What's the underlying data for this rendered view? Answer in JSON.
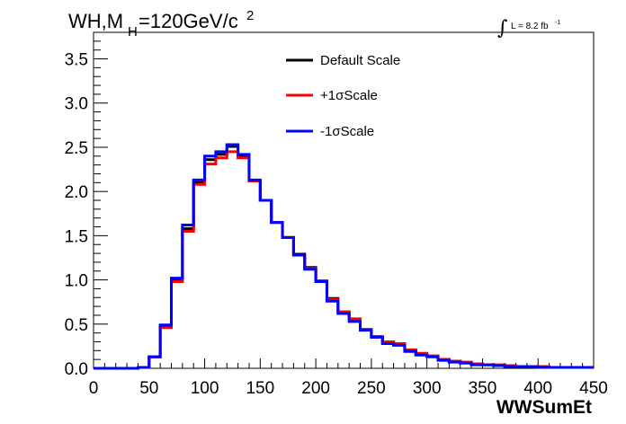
{
  "header": {
    "title_prefix": "WH,M",
    "title_sub": "H",
    "title_rest": "=120GeV/c",
    "title_sup": "2",
    "lumi_symbol": "∫",
    "lumi_text": "L = 8.2 fb",
    "lumi_sup": "-1"
  },
  "colors": {
    "default": "#000000",
    "plus": "#ff0000",
    "minus": "#0000ff",
    "axis": "#000000"
  },
  "chart_data": {
    "type": "line",
    "step": true,
    "title": "WH,M_H=120GeV/c^2",
    "xlabel": "WWSumEt",
    "ylabel": "",
    "xlim": [
      0,
      450
    ],
    "ylim": [
      0,
      3.8
    ],
    "bin_width": 10,
    "x_bin_low_edges": [
      0,
      10,
      20,
      30,
      40,
      50,
      60,
      70,
      80,
      90,
      100,
      110,
      120,
      130,
      140,
      150,
      160,
      170,
      180,
      190,
      200,
      210,
      220,
      230,
      240,
      250,
      260,
      270,
      280,
      290,
      300,
      310,
      320,
      330,
      340,
      350,
      360,
      370,
      380,
      390,
      400,
      410,
      420,
      430,
      440
    ],
    "x_ticks": [
      "0",
      "50",
      "100",
      "150",
      "200",
      "250",
      "300",
      "350",
      "400",
      "450"
    ],
    "y_ticks": [
      "0.0",
      "0.5",
      "1.0",
      "1.5",
      "2.0",
      "2.5",
      "3.0",
      "3.5"
    ],
    "legend_position": "top-center",
    "grid": false,
    "series": [
      {
        "name": "Default Scale",
        "values": [
          0,
          0,
          0,
          0,
          0.01,
          0.13,
          0.48,
          1.0,
          1.58,
          2.1,
          2.36,
          2.42,
          2.51,
          2.4,
          2.12,
          1.9,
          1.65,
          1.48,
          1.29,
          1.14,
          0.99,
          0.79,
          0.64,
          0.55,
          0.44,
          0.36,
          0.29,
          0.27,
          0.2,
          0.16,
          0.14,
          0.1,
          0.08,
          0.06,
          0.05,
          0.04,
          0.03,
          0.03,
          0.02,
          0.02,
          0.02,
          0.01,
          0.01,
          0.01,
          0.01
        ]
      },
      {
        "name": "+1σScale",
        "values": [
          0,
          0,
          0,
          0,
          0.01,
          0.13,
          0.46,
          0.98,
          1.55,
          2.08,
          2.31,
          2.38,
          2.45,
          2.38,
          2.12,
          1.9,
          1.65,
          1.48,
          1.28,
          1.13,
          0.99,
          0.78,
          0.64,
          0.56,
          0.44,
          0.36,
          0.3,
          0.28,
          0.21,
          0.17,
          0.14,
          0.1,
          0.08,
          0.07,
          0.05,
          0.04,
          0.04,
          0.03,
          0.02,
          0.02,
          0.02,
          0.01,
          0.01,
          0.01,
          0.01
        ]
      },
      {
        "name": "-1σScale",
        "values": [
          0,
          0,
          0,
          0,
          0.01,
          0.13,
          0.49,
          1.02,
          1.62,
          2.13,
          2.4,
          2.45,
          2.53,
          2.42,
          2.13,
          1.9,
          1.65,
          1.48,
          1.28,
          1.12,
          0.98,
          0.76,
          0.62,
          0.53,
          0.43,
          0.35,
          0.28,
          0.26,
          0.19,
          0.15,
          0.13,
          0.09,
          0.07,
          0.06,
          0.04,
          0.04,
          0.03,
          0.02,
          0.02,
          0.02,
          0.01,
          0.01,
          0.01,
          0.01,
          0.01
        ]
      }
    ]
  }
}
